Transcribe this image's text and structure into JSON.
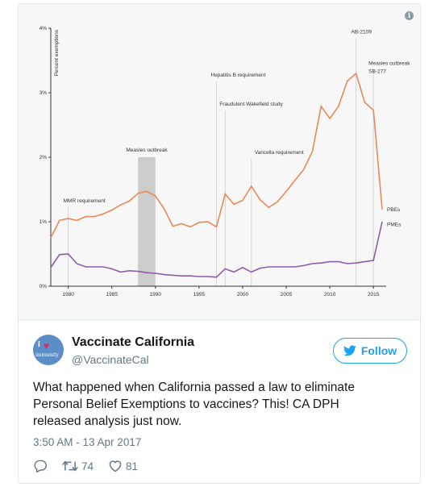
{
  "chart_data": {
    "type": "line",
    "ylabel": "Percent exemptions",
    "ylim": [
      0,
      4
    ],
    "xlim": [
      1978,
      2016
    ],
    "ytick_labels": [
      "0%",
      "1%",
      "2%",
      "3%",
      "4%"
    ],
    "xticks": [
      1980,
      1985,
      1990,
      1995,
      2000,
      2005,
      2010,
      2015
    ],
    "series": [
      {
        "name": "PBEs",
        "color": "#e8895a",
        "x": [
          1978,
          1979,
          1980,
          1981,
          1982,
          1983,
          1984,
          1985,
          1986,
          1987,
          1988,
          1989,
          1990,
          1991,
          1992,
          1993,
          1994,
          1995,
          1996,
          1997,
          1998,
          1999,
          2000,
          2001,
          2002,
          2003,
          2004,
          2005,
          2006,
          2007,
          2008,
          2009,
          2010,
          2011,
          2012,
          2013,
          2014,
          2015,
          2016
        ],
        "y": [
          0.75,
          1.02,
          1.05,
          1.02,
          1.08,
          1.08,
          1.12,
          1.18,
          1.26,
          1.32,
          1.44,
          1.47,
          1.4,
          1.2,
          0.93,
          0.97,
          0.92,
          0.99,
          1.0,
          0.92,
          1.43,
          1.27,
          1.33,
          1.55,
          1.34,
          1.22,
          1.31,
          1.47,
          1.64,
          1.81,
          2.09,
          2.79,
          2.6,
          2.79,
          3.18,
          3.3,
          2.85,
          2.73,
          1.19
        ]
      },
      {
        "name": "PMEs",
        "color": "#8e5ba8",
        "x": [
          1978,
          1979,
          1980,
          1981,
          1982,
          1983,
          1984,
          1985,
          1986,
          1987,
          1988,
          1989,
          1990,
          1991,
          1992,
          1993,
          1994,
          1995,
          1996,
          1997,
          1998,
          1999,
          2000,
          2001,
          2002,
          2003,
          2004,
          2005,
          2006,
          2007,
          2008,
          2009,
          2010,
          2011,
          2012,
          2013,
          2014,
          2015,
          2016
        ],
        "y": [
          0.29,
          0.49,
          0.5,
          0.35,
          0.3,
          0.3,
          0.3,
          0.27,
          0.22,
          0.24,
          0.23,
          0.21,
          0.2,
          0.18,
          0.17,
          0.16,
          0.16,
          0.15,
          0.15,
          0.14,
          0.27,
          0.22,
          0.29,
          0.22,
          0.28,
          0.3,
          0.3,
          0.3,
          0.3,
          0.32,
          0.35,
          0.36,
          0.38,
          0.38,
          0.35,
          0.36,
          0.38,
          0.4,
          1.0
        ]
      }
    ],
    "shaded_range": {
      "x": [
        1988,
        1990
      ],
      "label": "Measles outbreak"
    },
    "annotations": [
      {
        "x": 1980,
        "label": "MMR requirement"
      },
      {
        "x": 1997,
        "label": "Hepatitis B requirement"
      },
      {
        "x": 1998,
        "label": "Fraudulent Wakefield study"
      },
      {
        "x": 2001,
        "label": "Varicella requirement"
      },
      {
        "x": 2013,
        "label": "AB-2109"
      },
      {
        "x": 2015,
        "label": "Measles outbreak",
        "label2": "SB-277"
      }
    ],
    "grid": false,
    "legend": "end-labels"
  },
  "tweet": {
    "display_name": "Vaccinate California",
    "handle": "@VaccinateCal",
    "follow_label": "Follow",
    "text_lines": [
      "What happened when California passed a law to eliminate",
      "Personal Belief Exemptions to vaccines? This! CA DPH",
      "released analysis just now."
    ],
    "timestamp": "3:50 AM - 13 Apr 2017",
    "retweets": "74",
    "likes": "81",
    "avatar_text": "immunity",
    "avatar_letter": "I",
    "info_glyph": "i",
    "icons": [
      "info-icon",
      "twitter-bird-icon",
      "reply-icon",
      "retweet-icon",
      "heart-icon"
    ],
    "accent_color": "#1da1f2",
    "muted_color": "#657786"
  }
}
